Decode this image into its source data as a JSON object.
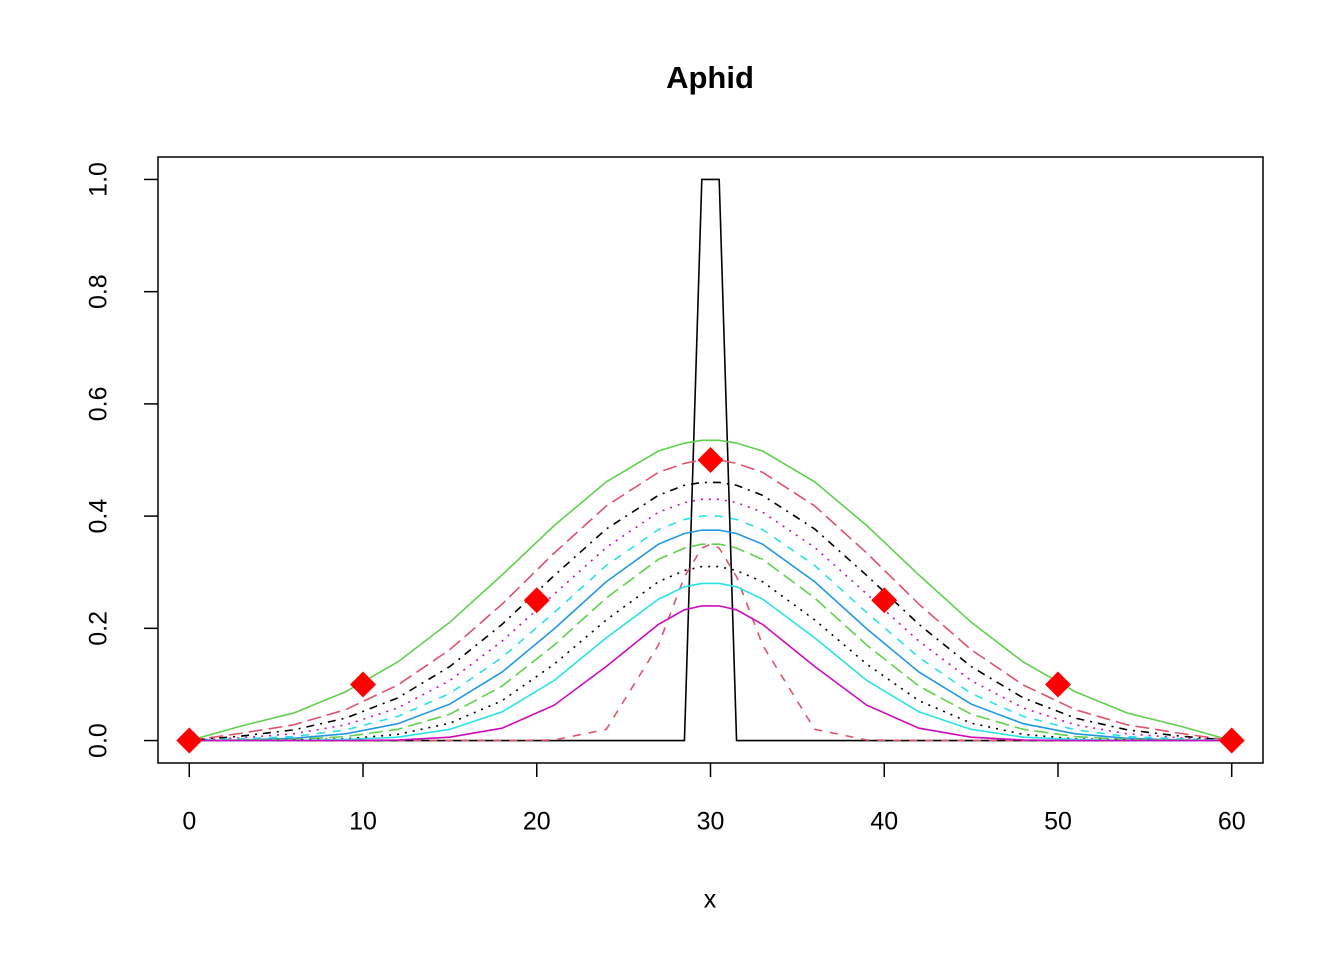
{
  "chart_data": {
    "type": "line",
    "title": "Aphid",
    "x_label": "x",
    "x": [
      0,
      3,
      6,
      9,
      12,
      15,
      18,
      21,
      24,
      27,
      28.5,
      29.5,
      30,
      30.5,
      31.5,
      33,
      36,
      39,
      42,
      45,
      48,
      51,
      54,
      57,
      60
    ],
    "series": [
      {
        "color": "#000000",
        "dash": "solid",
        "values": [
          0,
          0,
          0,
          0,
          0,
          0,
          0,
          0,
          0,
          0,
          0,
          1,
          1,
          1,
          0,
          0,
          0,
          0,
          0,
          0,
          0,
          0,
          0,
          0,
          0
        ]
      },
      {
        "color": "#61D04F",
        "dash": "solid",
        "values": [
          0,
          0.026,
          0.049,
          0.087,
          0.14,
          0.211,
          0.295,
          0.383,
          0.461,
          0.516,
          0.53,
          0.535,
          0.535,
          0.535,
          0.53,
          0.516,
          0.461,
          0.383,
          0.295,
          0.211,
          0.14,
          0.087,
          0.049,
          0.026,
          0
        ]
      },
      {
        "color": "#DF536B",
        "dash": "longdash",
        "values": [
          0,
          0.013,
          0.028,
          0.055,
          0.099,
          0.162,
          0.243,
          0.334,
          0.418,
          0.478,
          0.494,
          0.5,
          0.5,
          0.5,
          0.494,
          0.478,
          0.418,
          0.334,
          0.243,
          0.162,
          0.099,
          0.055,
          0.028,
          0.013,
          0
        ]
      },
      {
        "color": "#000000",
        "dash": "dotdash",
        "values": [
          0,
          0.008,
          0.019,
          0.04,
          0.076,
          0.132,
          0.207,
          0.294,
          0.377,
          0.437,
          0.455,
          0.46,
          0.46,
          0.46,
          0.455,
          0.437,
          0.377,
          0.294,
          0.207,
          0.132,
          0.076,
          0.04,
          0.019,
          0.008,
          0
        ]
      },
      {
        "color": "#CD0BBC",
        "dash": "dotted",
        "values": [
          0,
          0.005,
          0.012,
          0.028,
          0.058,
          0.107,
          0.177,
          0.261,
          0.344,
          0.407,
          0.424,
          0.43,
          0.43,
          0.43,
          0.424,
          0.407,
          0.344,
          0.261,
          0.177,
          0.107,
          0.058,
          0.028,
          0.012,
          0.005,
          0
        ]
      },
      {
        "color": "#28E2E5",
        "dash": "dashed",
        "values": [
          0,
          0.003,
          0.007,
          0.019,
          0.043,
          0.084,
          0.148,
          0.228,
          0.312,
          0.376,
          0.394,
          0.4,
          0.4,
          0.4,
          0.394,
          0.376,
          0.312,
          0.228,
          0.148,
          0.084,
          0.043,
          0.019,
          0.007,
          0.003,
          0
        ]
      },
      {
        "color": "#2297E6",
        "dash": "solid",
        "values": [
          0,
          0.001,
          0.004,
          0.012,
          0.03,
          0.065,
          0.122,
          0.199,
          0.283,
          0.35,
          0.369,
          0.375,
          0.375,
          0.375,
          0.369,
          0.35,
          0.283,
          0.199,
          0.122,
          0.065,
          0.03,
          0.012,
          0.004,
          0.001,
          0
        ]
      },
      {
        "color": "#61D04F",
        "dash": "longdash",
        "values": [
          0,
          0.001,
          0.002,
          0.007,
          0.02,
          0.047,
          0.097,
          0.17,
          0.254,
          0.323,
          0.343,
          0.35,
          0.35,
          0.35,
          0.343,
          0.323,
          0.254,
          0.17,
          0.097,
          0.047,
          0.02,
          0.007,
          0.002,
          0.001,
          0
        ]
      },
      {
        "color": "#DF536B",
        "dash": "dashed",
        "values": [
          0,
          0,
          0,
          0,
          0,
          0,
          0,
          0.001,
          0.02,
          0.17,
          0.292,
          0.343,
          0.35,
          0.343,
          0.292,
          0.17,
          0.02,
          0.001,
          0,
          0,
          0,
          0,
          0,
          0,
          0
        ]
      },
      {
        "color": "#000000",
        "dash": "dotted",
        "values": [
          0,
          0,
          0.001,
          0.003,
          0.011,
          0.031,
          0.071,
          0.136,
          0.215,
          0.283,
          0.303,
          0.31,
          0.31,
          0.31,
          0.303,
          0.283,
          0.215,
          0.136,
          0.071,
          0.031,
          0.011,
          0.003,
          0.001,
          0,
          0
        ]
      },
      {
        "color": "#28E2E5",
        "dash": "solid",
        "values": [
          0,
          0,
          0,
          0.002,
          0.006,
          0.02,
          0.051,
          0.107,
          0.183,
          0.252,
          0.274,
          0.28,
          0.28,
          0.28,
          0.274,
          0.252,
          0.183,
          0.107,
          0.051,
          0.02,
          0.006,
          0.002,
          0,
          0,
          0
        ]
      },
      {
        "color": "#CD0BBC",
        "dash": "solid",
        "values": [
          0,
          0,
          0,
          0,
          0.001,
          0.006,
          0.022,
          0.063,
          0.132,
          0.207,
          0.233,
          0.24,
          0.24,
          0.24,
          0.233,
          0.207,
          0.132,
          0.063,
          0.022,
          0.006,
          0.001,
          0,
          0,
          0,
          0
        ]
      }
    ],
    "points": {
      "color": "#FF0000",
      "x": [
        0,
        10,
        20,
        30,
        40,
        50,
        60
      ],
      "values": [
        0,
        0.1,
        0.25,
        0.5,
        0.25,
        0.1,
        0
      ]
    },
    "xlim": [
      -1.8,
      61.8
    ],
    "xticks": [
      0,
      10,
      20,
      30,
      40,
      50,
      60
    ],
    "ylim": [
      -0.04,
      1.04
    ],
    "yticks": [
      {
        "value": 0,
        "label": "0.0"
      },
      {
        "value": 0.2,
        "label": "0.2"
      },
      {
        "value": 0.4,
        "label": "0.4"
      },
      {
        "value": 0.6,
        "label": "0.6"
      },
      {
        "value": 0.8,
        "label": "0.8"
      },
      {
        "value": 1,
        "label": "1.0"
      }
    ]
  }
}
